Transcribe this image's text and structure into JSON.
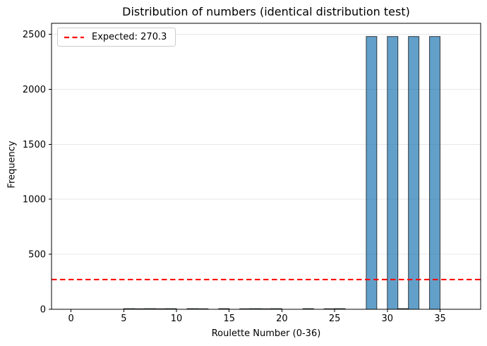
{
  "figure": {
    "background": "#ffffff"
  },
  "chart_data": {
    "type": "bar",
    "title": "Distribution of numbers (identical distribution test)",
    "xlabel": "Roulette Number (0-36)",
    "ylabel": "Frequency",
    "x_ticks": [
      0,
      5,
      10,
      15,
      20,
      25,
      30,
      35
    ],
    "y_ticks": [
      0,
      500,
      1000,
      1500,
      2000,
      2500
    ],
    "xlim": [
      -1.85,
      38.85
    ],
    "ylim": [
      0,
      2600
    ],
    "grid": "horizontal",
    "grid_color": "#e7e7e7",
    "bin_start": 0,
    "bin_width": 1,
    "bins": [
      0,
      1,
      2,
      3,
      4,
      5,
      6,
      7,
      8,
      9,
      10,
      11,
      12,
      13,
      14,
      15,
      16,
      17,
      18,
      19,
      20,
      21,
      22,
      23,
      24,
      25,
      26,
      27,
      28,
      29,
      30,
      31,
      32,
      33,
      34,
      35,
      36
    ],
    "values": [
      0,
      0,
      0,
      0,
      0,
      6,
      5,
      6,
      5,
      6,
      0,
      6,
      5,
      0,
      6,
      0,
      5,
      6,
      5,
      6,
      0,
      0,
      6,
      0,
      5,
      6,
      0,
      0,
      2480,
      0,
      2480,
      6,
      2480,
      0,
      2480,
      0,
      0
    ],
    "bar_fill": "#1f77b4",
    "bar_fill_opacity": 0.7,
    "bar_edge": "#000000",
    "bar_edge_opacity": 0.72,
    "expected_line": {
      "value": 270.3,
      "color": "#ff0000",
      "style": "dashed",
      "label": "Expected: 270.3"
    },
    "legend_position": "upper-left"
  }
}
